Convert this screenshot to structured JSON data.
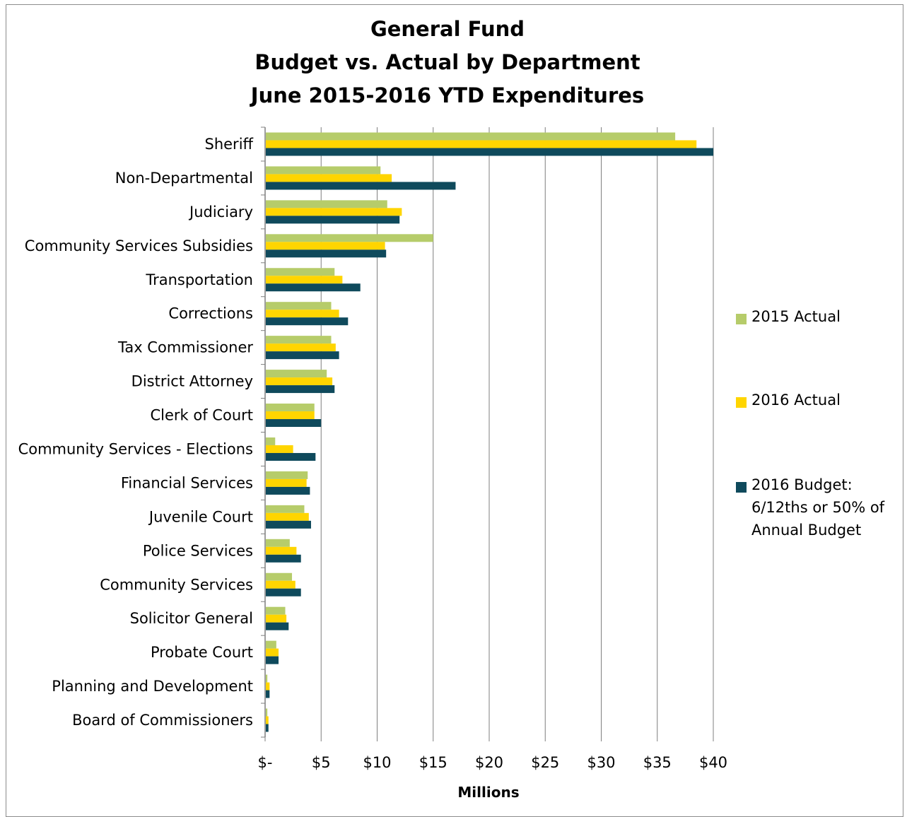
{
  "title_lines": [
    "General Fund",
    "Budget vs. Actual by Department",
    "June 2015-2016 YTD Expenditures"
  ],
  "colors": {
    "series_2015": "#b6cc6a",
    "series_2016": "#ffd500",
    "series_budget": "#0f4a5c",
    "grid": "#7f7f7f",
    "frame": "#8c8c8c"
  },
  "legend": [
    {
      "label": "2015 Actual",
      "color": "#b6cc6a"
    },
    {
      "label": "2016 Actual",
      "color": "#ffd500"
    },
    {
      "label": "2016 Budget:\n6/12ths or 50% of\nAnnual Budget",
      "color": "#0f4a5c"
    }
  ],
  "chart_data": {
    "type": "bar",
    "orientation": "horizontal",
    "title": "General Fund Budget vs. Actual by Department June 2015-2016 YTD Expenditures",
    "xlabel": "Millions",
    "ylabel": "",
    "xlim": [
      0,
      40
    ],
    "xticks": [
      0,
      5,
      10,
      15,
      20,
      25,
      30,
      35,
      40
    ],
    "xtick_labels": [
      "$-",
      "$5",
      "$10",
      "$15",
      "$20",
      "$25",
      "$30",
      "$35",
      "$40"
    ],
    "grid": true,
    "legend_position": "right",
    "categories": [
      "Sheriff",
      "Non-Departmental",
      "Judiciary",
      "Community Services Subsidies",
      "Transportation",
      "Corrections",
      "Tax Commissioner",
      "District Attorney",
      "Clerk of Court",
      "Community Services - Elections",
      "Financial Services",
      "Juvenile Court",
      "Police Services",
      "Community Services",
      "Solicitor General",
      "Probate Court",
      "Planning and Development",
      "Board of Commissioners"
    ],
    "series": [
      {
        "name": "2015 Actual",
        "values": [
          36.6,
          10.3,
          10.9,
          15.0,
          6.2,
          5.9,
          5.9,
          5.5,
          4.4,
          0.9,
          3.8,
          3.5,
          2.2,
          2.4,
          1.8,
          1.0,
          0.2,
          0.2
        ]
      },
      {
        "name": "2016 Actual",
        "values": [
          38.5,
          11.3,
          12.2,
          10.7,
          6.9,
          6.6,
          6.3,
          6.0,
          4.4,
          2.5,
          3.7,
          3.9,
          2.8,
          2.7,
          1.9,
          1.2,
          0.4,
          0.3
        ]
      },
      {
        "name": "2016 Budget: 6/12ths or 50% of Annual Budget",
        "values": [
          40.0,
          17.0,
          12.0,
          10.8,
          8.5,
          7.4,
          6.6,
          6.2,
          5.0,
          4.5,
          4.0,
          4.1,
          3.2,
          3.2,
          2.1,
          1.2,
          0.4,
          0.3
        ]
      }
    ]
  }
}
